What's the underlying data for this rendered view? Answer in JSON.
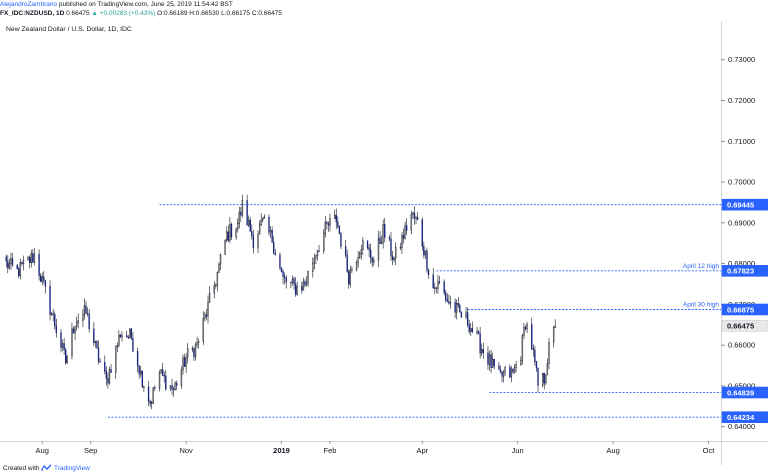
{
  "header": {
    "author": "AlejandroZambrano",
    "published": "published on TradingView.com, June 25, 2019 11:54:42 BST",
    "symbol": "FX_IDC:NZDUSD, 1D",
    "last": "0.66475",
    "change": "▲ +0.00283 (+0.43%)",
    "ohlc": "O:0.66189 H:0.66530 L:0.66175 C:0.66475"
  },
  "footer": {
    "created_with": "Created with",
    "brand": "TradingView"
  },
  "colors": {
    "line": "#2962ff",
    "bull": "#ffffff",
    "bear": "#1a237e",
    "wick": "#131722"
  },
  "chart_data": {
    "type": "candlestick",
    "title": "New Zealand Dollar / U.S. Dollar, 1D, IDC",
    "ylim": [
      0.6365,
      0.7395
    ],
    "x_range": [
      "2018-07-05",
      "2019-10-09"
    ],
    "y_ticks": [
      "0.73000",
      "0.72000",
      "0.71000",
      "0.70000",
      "0.69000",
      "0.68000",
      "0.67000",
      "0.66000",
      "0.65000",
      "0.64000"
    ],
    "x_ticks": [
      {
        "label": "Aug",
        "date": "2018-08-01",
        "bold": false
      },
      {
        "label": "Sep",
        "date": "2018-09-01",
        "bold": false
      },
      {
        "label": "Nov",
        "date": "2018-11-01",
        "bold": false
      },
      {
        "label": "2019",
        "date": "2019-01-01",
        "bold": true
      },
      {
        "label": "Feb",
        "date": "2019-02-01",
        "bold": false
      },
      {
        "label": "Apr",
        "date": "2019-04-01",
        "bold": false
      },
      {
        "label": "Jun",
        "date": "2019-06-01",
        "bold": false
      },
      {
        "label": "Aug",
        "date": "2019-08-01",
        "bold": false
      },
      {
        "label": "Oct",
        "date": "2019-10-01",
        "bold": false
      }
    ],
    "levels": [
      {
        "value": 0.69445,
        "label": "0.69445",
        "start": "2018-10-15",
        "note": ""
      },
      {
        "value": 0.67823,
        "label": "0.67823",
        "start": "2019-04-10",
        "note": "April 12 high"
      },
      {
        "value": 0.66875,
        "label": "0.66875",
        "start": "2019-04-30",
        "note": "April 30 high"
      },
      {
        "value": 0.64839,
        "label": "0.64839",
        "start": "2019-05-14",
        "note": ""
      },
      {
        "value": 0.64234,
        "label": "0.64234",
        "start": "2018-09-12",
        "note": ""
      }
    ],
    "current_price": {
      "value": 0.66475,
      "label": "0.66475"
    },
    "anchors": [
      [
        "2018-07-09",
        0.68
      ],
      [
        "2018-07-16",
        0.678
      ],
      [
        "2018-07-27",
        0.682
      ],
      [
        "2018-08-10",
        0.664
      ],
      [
        "2018-08-16",
        0.656
      ],
      [
        "2018-08-22",
        0.666
      ],
      [
        "2018-08-29",
        0.668
      ],
      [
        "2018-09-05",
        0.658
      ],
      [
        "2018-09-11",
        0.651
      ],
      [
        "2018-09-20",
        0.663
      ],
      [
        "2018-09-27",
        0.662
      ],
      [
        "2018-10-03",
        0.653
      ],
      [
        "2018-10-09",
        0.646
      ],
      [
        "2018-10-15",
        0.653
      ],
      [
        "2018-10-24",
        0.649
      ],
      [
        "2018-11-01",
        0.657
      ],
      [
        "2018-11-08",
        0.66
      ],
      [
        "2018-11-20",
        0.676
      ],
      [
        "2018-11-27",
        0.687
      ],
      [
        "2018-12-04",
        0.69
      ],
      [
        "2018-12-07",
        0.694
      ],
      [
        "2018-12-14",
        0.686
      ],
      [
        "2018-12-20",
        0.69
      ],
      [
        "2018-12-26",
        0.686
      ],
      [
        "2019-01-02",
        0.676
      ],
      [
        "2019-01-10",
        0.674
      ],
      [
        "2019-01-16",
        0.675
      ],
      [
        "2019-01-23",
        0.683
      ],
      [
        "2019-01-30",
        0.689
      ],
      [
        "2019-02-05",
        0.691
      ],
      [
        "2019-02-13",
        0.677
      ],
      [
        "2019-02-21",
        0.685
      ],
      [
        "2019-03-01",
        0.681
      ],
      [
        "2019-03-07",
        0.688
      ],
      [
        "2019-03-14",
        0.681
      ],
      [
        "2019-03-20",
        0.687
      ],
      [
        "2019-03-25",
        0.692
      ],
      [
        "2019-03-29",
        0.69
      ],
      [
        "2019-04-08",
        0.674
      ],
      [
        "2019-04-12",
        0.675
      ],
      [
        "2019-04-17",
        0.671
      ],
      [
        "2019-04-24",
        0.668
      ],
      [
        "2019-04-30",
        0.666
      ],
      [
        "2019-05-08",
        0.66
      ],
      [
        "2019-05-14",
        0.656
      ],
      [
        "2019-05-20",
        0.652
      ],
      [
        "2019-05-24",
        0.653
      ],
      [
        "2019-05-29",
        0.653
      ],
      [
        "2019-06-03",
        0.658
      ],
      [
        "2019-06-06",
        0.666
      ],
      [
        "2019-06-10",
        0.66
      ],
      [
        "2019-06-14",
        0.65
      ],
      [
        "2019-06-18",
        0.652
      ],
      [
        "2019-06-21",
        0.659
      ],
      [
        "2019-06-25",
        0.6645
      ]
    ]
  }
}
